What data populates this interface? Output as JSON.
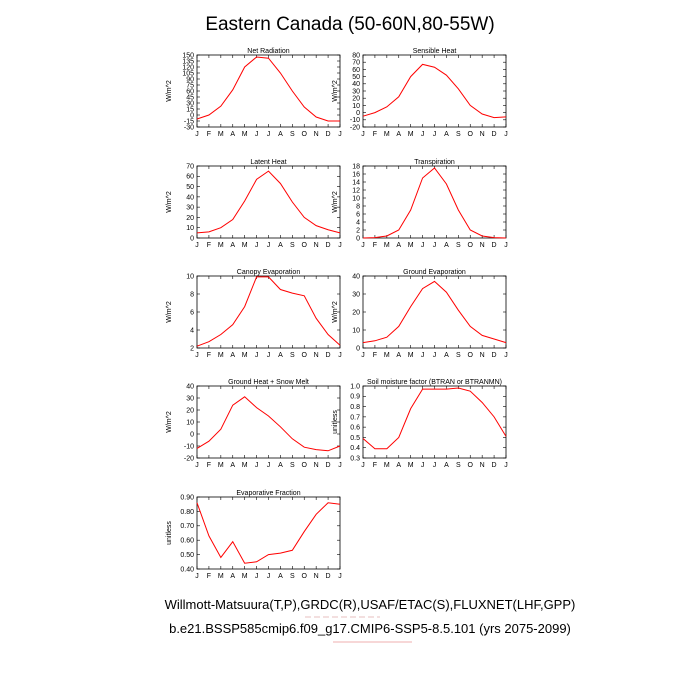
{
  "title": "Eastern Canada (50-60N,80-55W)",
  "footer": {
    "line1": "Willmott-Matsuura(T,P),GRDC(R),USAF/ETAC(S),FLUXNET(LHF,GPP)",
    "line2": "b.e21.BSSP585cmip6.f09_g17.CMIP6-SSP5-8.5.101 (yrs 2075-2099)"
  },
  "colors": {
    "line": "#ff0000",
    "axis": "#000000"
  },
  "chart_data": [
    {
      "type": "line",
      "title": "Net Radiation",
      "ylabel": "W/m^2",
      "categories": [
        "J",
        "F",
        "M",
        "A",
        "M",
        "J",
        "J",
        "A",
        "S",
        "O",
        "N",
        "D",
        "J"
      ],
      "ylim": [
        -30,
        150
      ],
      "yticks": [
        -30,
        -15,
        0,
        15,
        30,
        45,
        60,
        75,
        90,
        105,
        120,
        135,
        150
      ],
      "yticklabels": [
        "-30",
        "-15",
        "0",
        "15",
        "30",
        "45",
        "60",
        "75",
        "90",
        "105",
        "120",
        "135",
        "150"
      ],
      "values": [
        -10,
        0,
        22,
        63,
        120,
        145,
        142,
        105,
        60,
        20,
        -5,
        -15,
        -15
      ]
    },
    {
      "type": "line",
      "title": "Sensible Heat",
      "ylabel": "W/m^2",
      "categories": [
        "J",
        "F",
        "M",
        "A",
        "M",
        "J",
        "J",
        "A",
        "S",
        "O",
        "N",
        "D",
        "J"
      ],
      "ylim": [
        -20,
        80
      ],
      "yticks": [
        -20,
        -10,
        0,
        10,
        20,
        30,
        40,
        50,
        60,
        70,
        80
      ],
      "yticklabels": [
        "-20",
        "-10",
        "0",
        "10",
        "20",
        "30",
        "40",
        "50",
        "60",
        "70",
        "80"
      ],
      "values": [
        -5,
        0,
        8,
        22,
        50,
        67,
        63,
        52,
        33,
        10,
        -2,
        -7,
        -6
      ]
    },
    {
      "type": "line",
      "title": "Latent Heat",
      "ylabel": "W/m^2",
      "categories": [
        "J",
        "F",
        "M",
        "A",
        "M",
        "J",
        "J",
        "A",
        "S",
        "O",
        "N",
        "D",
        "J"
      ],
      "ylim": [
        0,
        70
      ],
      "yticks": [
        0,
        10,
        20,
        30,
        40,
        50,
        60,
        70
      ],
      "yticklabels": [
        "0",
        "10",
        "20",
        "30",
        "40",
        "50",
        "60",
        "70"
      ],
      "values": [
        5,
        6,
        10,
        18,
        36,
        57,
        65,
        53,
        35,
        20,
        12,
        8,
        5
      ]
    },
    {
      "type": "line",
      "title": "Transpiration",
      "ylabel": "W/m^2",
      "categories": [
        "J",
        "F",
        "M",
        "A",
        "M",
        "J",
        "J",
        "A",
        "S",
        "O",
        "N",
        "D",
        "J"
      ],
      "ylim": [
        0,
        18
      ],
      "yticks": [
        0,
        2,
        4,
        6,
        8,
        10,
        12,
        14,
        16,
        18
      ],
      "yticklabels": [
        "0",
        "2",
        "4",
        "6",
        "8",
        "10",
        "12",
        "14",
        "16",
        "18"
      ],
      "values": [
        0,
        0.1,
        0.5,
        2,
        7,
        15,
        17.5,
        13.5,
        7,
        2,
        0.5,
        0.1,
        0
      ]
    },
    {
      "type": "line",
      "title": "Canopy Evaporation",
      "ylabel": "W/m^2",
      "categories": [
        "J",
        "F",
        "M",
        "A",
        "M",
        "J",
        "J",
        "A",
        "S",
        "O",
        "N",
        "D",
        "J"
      ],
      "ylim": [
        2,
        10
      ],
      "yticks": [
        2,
        4,
        6,
        8,
        10
      ],
      "yticklabels": [
        "2",
        "4",
        "6",
        "8",
        "10"
      ],
      "values": [
        2.2,
        2.7,
        3.5,
        4.6,
        6.6,
        9.9,
        9.9,
        8.5,
        8.1,
        7.8,
        5.3,
        3.5,
        2.3
      ]
    },
    {
      "type": "line",
      "title": "Ground Evaporation",
      "ylabel": "W/m^2",
      "categories": [
        "J",
        "F",
        "M",
        "A",
        "M",
        "J",
        "J",
        "A",
        "S",
        "O",
        "N",
        "D",
        "J"
      ],
      "ylim": [
        0,
        40
      ],
      "yticks": [
        0,
        10,
        20,
        30,
        40
      ],
      "yticklabels": [
        "0",
        "10",
        "20",
        "30",
        "40"
      ],
      "values": [
        3,
        4,
        6,
        12,
        23,
        33,
        37,
        31,
        21,
        12,
        7,
        5,
        3
      ]
    },
    {
      "type": "line",
      "title": "Ground Heat + Snow Melt",
      "ylabel": "W/m^2",
      "categories": [
        "J",
        "F",
        "M",
        "A",
        "M",
        "J",
        "J",
        "A",
        "S",
        "O",
        "N",
        "D",
        "J"
      ],
      "ylim": [
        -20,
        40
      ],
      "yticks": [
        -20,
        -10,
        0,
        10,
        20,
        30,
        40
      ],
      "yticklabels": [
        "-20",
        "-10",
        "0",
        "10",
        "20",
        "30",
        "40"
      ],
      "values": [
        -12,
        -6,
        4,
        24,
        31,
        22,
        15,
        6,
        -4,
        -11,
        -13,
        -14,
        -10
      ]
    },
    {
      "type": "line",
      "title": "Soil moisture factor (BTRAN or BTRANMN)",
      "ylabel": "unitless",
      "categories": [
        "J",
        "F",
        "M",
        "A",
        "M",
        "J",
        "J",
        "A",
        "S",
        "O",
        "N",
        "D",
        "J"
      ],
      "ylim": [
        0.3,
        1.0
      ],
      "yticks": [
        0.3,
        0.4,
        0.5,
        0.6,
        0.7,
        0.8,
        0.9,
        1.0
      ],
      "yticklabels": [
        "0.3",
        "0.4",
        "0.5",
        "0.6",
        "0.7",
        "0.8",
        "0.9",
        "1.0"
      ],
      "values": [
        0.49,
        0.39,
        0.39,
        0.5,
        0.78,
        0.97,
        0.97,
        0.97,
        0.98,
        0.95,
        0.84,
        0.7,
        0.51
      ]
    },
    {
      "type": "line",
      "title": "Evaporative Fraction",
      "ylabel": "unitless",
      "categories": [
        "J",
        "F",
        "M",
        "A",
        "M",
        "J",
        "J",
        "A",
        "S",
        "O",
        "N",
        "D",
        "J"
      ],
      "ylim": [
        0.4,
        0.9
      ],
      "yticks": [
        0.4,
        0.5,
        0.6,
        0.7,
        0.8,
        0.9
      ],
      "yticklabels": [
        "0.40",
        "0.50",
        "0.60",
        "0.70",
        "0.80",
        "0.90"
      ],
      "values": [
        0.86,
        0.63,
        0.48,
        0.59,
        0.44,
        0.45,
        0.5,
        0.51,
        0.53,
        0.66,
        0.78,
        0.86,
        0.85
      ]
    }
  ]
}
